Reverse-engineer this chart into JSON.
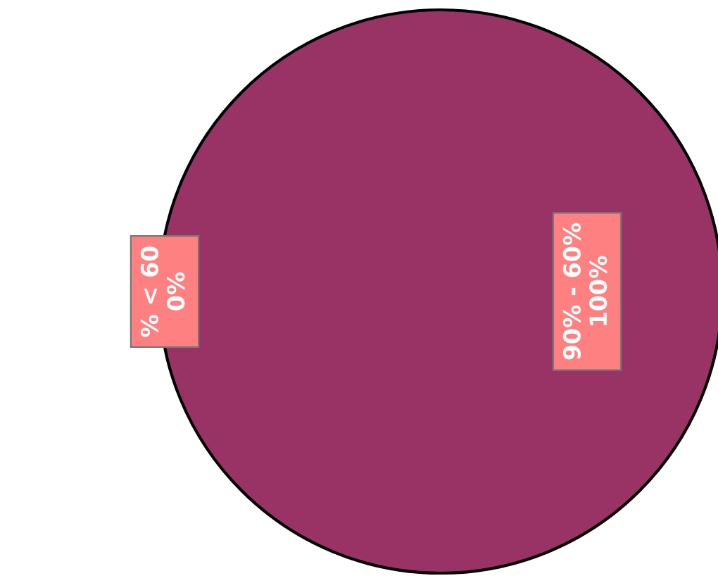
{
  "chart_data": {
    "type": "pie",
    "categories": [
      "% < 60",
      "90% - 60%"
    ],
    "values": [
      0,
      100
    ],
    "colors": [
      "#993366",
      "#993366"
    ],
    "value_labels": [
      "0%",
      "100%"
    ],
    "legend": false
  }
}
